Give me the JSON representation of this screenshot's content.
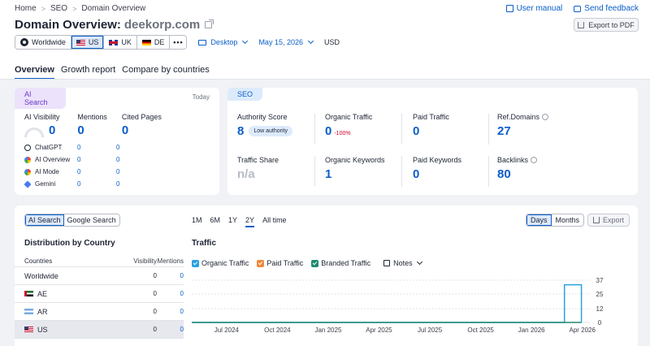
{
  "breadcrumb": [
    "Home",
    "SEO",
    "Domain Overview"
  ],
  "title": {
    "prefix": "Domain Overview:",
    "domain": "deekorp.com"
  },
  "toplinks": {
    "manual": "User manual",
    "feedback": "Send feedback"
  },
  "export_pdf": "Export to PDF",
  "databases": [
    {
      "label": "Worldwide",
      "icon": "globe-icon",
      "active": false
    },
    {
      "label": "US",
      "icon": "flag-us",
      "active": true
    },
    {
      "label": "UK",
      "icon": "flag-uk",
      "active": false
    },
    {
      "label": "DE",
      "icon": "flag-de",
      "active": false
    }
  ],
  "more": "•••",
  "device": "Desktop",
  "date": "May 15, 2026",
  "currency": "USD",
  "tabs": [
    "Overview",
    "Growth report",
    "Compare by countries"
  ],
  "ai_card": {
    "tag": "AI Search",
    "today": "Today",
    "metrics": [
      {
        "label": "AI Visibility",
        "value": "0"
      },
      {
        "label": "Mentions",
        "value": "0"
      },
      {
        "label": "Cited Pages",
        "value": "0"
      }
    ],
    "platforms": [
      {
        "name": "ChatGPT",
        "mentions": "0",
        "cited": "0",
        "icon": "chatgpt-icon"
      },
      {
        "name": "AI Overview",
        "mentions": "0",
        "cited": "0",
        "icon": "google-icon"
      },
      {
        "name": "AI Mode",
        "mentions": "0",
        "cited": "0",
        "icon": "google-icon"
      },
      {
        "name": "Gemini",
        "mentions": "0",
        "cited": "0",
        "icon": "gemini-icon"
      }
    ]
  },
  "seo_card": {
    "tag": "SEO",
    "authority": {
      "label": "Authority Score",
      "value": "8",
      "badge": "Low authority"
    },
    "organic_traffic": {
      "label": "Organic Traffic",
      "value": "0",
      "delta": "-100%"
    },
    "paid_traffic": {
      "label": "Paid Traffic",
      "value": "0"
    },
    "ref_domains": {
      "label": "Ref.Domains",
      "value": "27"
    },
    "traffic_share": {
      "label": "Traffic Share",
      "value": "n/a"
    },
    "organic_keywords": {
      "label": "Organic Keywords",
      "value": "1"
    },
    "paid_keywords": {
      "label": "Paid Keywords",
      "value": "0"
    },
    "backlinks": {
      "label": "Backlinks",
      "value": "80"
    }
  },
  "distribution": {
    "toggle": [
      "AI Search",
      "Google Search"
    ],
    "title": "Distribution by Country",
    "headers": {
      "country": "Countries",
      "visibility": "Visibility",
      "mentions": "Mentions"
    },
    "rows": [
      {
        "country": "Worldwide",
        "visibility": "0",
        "mentions": "0",
        "flag": ""
      },
      {
        "country": "AE",
        "visibility": "0",
        "mentions": "0",
        "flag": "flag-ae"
      },
      {
        "country": "AR",
        "visibility": "0",
        "mentions": "0",
        "flag": "flag-ar"
      },
      {
        "country": "US",
        "visibility": "0",
        "mentions": "0",
        "flag": "flag-us",
        "selected": true
      }
    ]
  },
  "traffic": {
    "ranges": [
      "1M",
      "6M",
      "1Y",
      "2Y",
      "All time"
    ],
    "active_range": "2Y",
    "units": [
      "Days",
      "Months"
    ],
    "export": "Export",
    "title": "Traffic",
    "legend": [
      {
        "name": "Organic Traffic",
        "color": "#2aa2e0"
      },
      {
        "name": "Paid Traffic",
        "color": "#f0883e"
      },
      {
        "name": "Branded Traffic",
        "color": "#1f8a70"
      }
    ],
    "notes": "Notes"
  },
  "chart_data": {
    "type": "line",
    "x_labels": [
      "Jul 2024",
      "Oct 2024",
      "Jan 2025",
      "Apr 2025",
      "Jul 2025",
      "Oct 2025",
      "Jan 2026",
      "Apr 2026"
    ],
    "y_ticks": [
      0,
      12,
      25,
      37
    ],
    "ylim": [
      0,
      37
    ],
    "series": [
      {
        "name": "Organic Traffic",
        "color": "#2aa2e0",
        "points": [
          [
            "Jun 2024",
            0
          ],
          [
            "Apr 2026",
            0
          ],
          [
            "Apr 2026",
            33
          ],
          [
            "May 2026",
            33
          ],
          [
            "May 2026",
            0
          ]
        ]
      },
      {
        "name": "Branded Traffic",
        "color": "#1f8a70",
        "points": [
          [
            "Jun 2024",
            0
          ],
          [
            "May 2026",
            0
          ]
        ]
      }
    ]
  }
}
